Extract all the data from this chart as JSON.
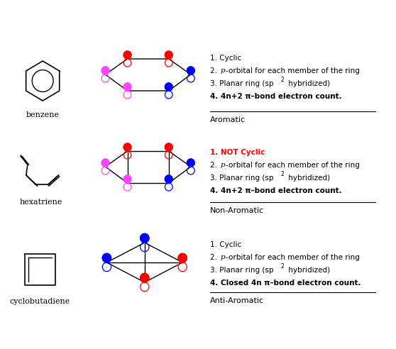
{
  "background": "#ffffff",
  "benzene_label": "benzene",
  "hexatriene_label": "hexatriene",
  "cyclobutadiene_label": "cyclobutadiene",
  "aromatic_label": "Aromatic",
  "nonaromatic_label": "Non-Aromatic",
  "antiaromatic_label": "Anti-Aromatic",
  "benzene_criteria": [
    "1. Cyclic",
    "2. ρ-orbital for each member of the ring",
    "3. Planar ring (sp² hybridized)",
    "4. 4n+2 π–bond electron count."
  ],
  "hexatriene_criteria": [
    "1. NOT Cyclic",
    "2. ρ-orbital for each member of the ring",
    "3. Planar ring (sp² hybridized)",
    "4. 4n+2 π–bond electron count."
  ],
  "cyclobutadiene_criteria": [
    "1. Cyclic",
    "2. ρ-orbital for each member of the ring",
    "3. Planar ring (sp² hybridized)",
    "4. Closed 4n π–bond electron count."
  ],
  "red": "#ff0000",
  "blue": "#0000ff",
  "magenta": "#ff00ff",
  "dark_magenta": "#cc00cc",
  "black": "#000000"
}
